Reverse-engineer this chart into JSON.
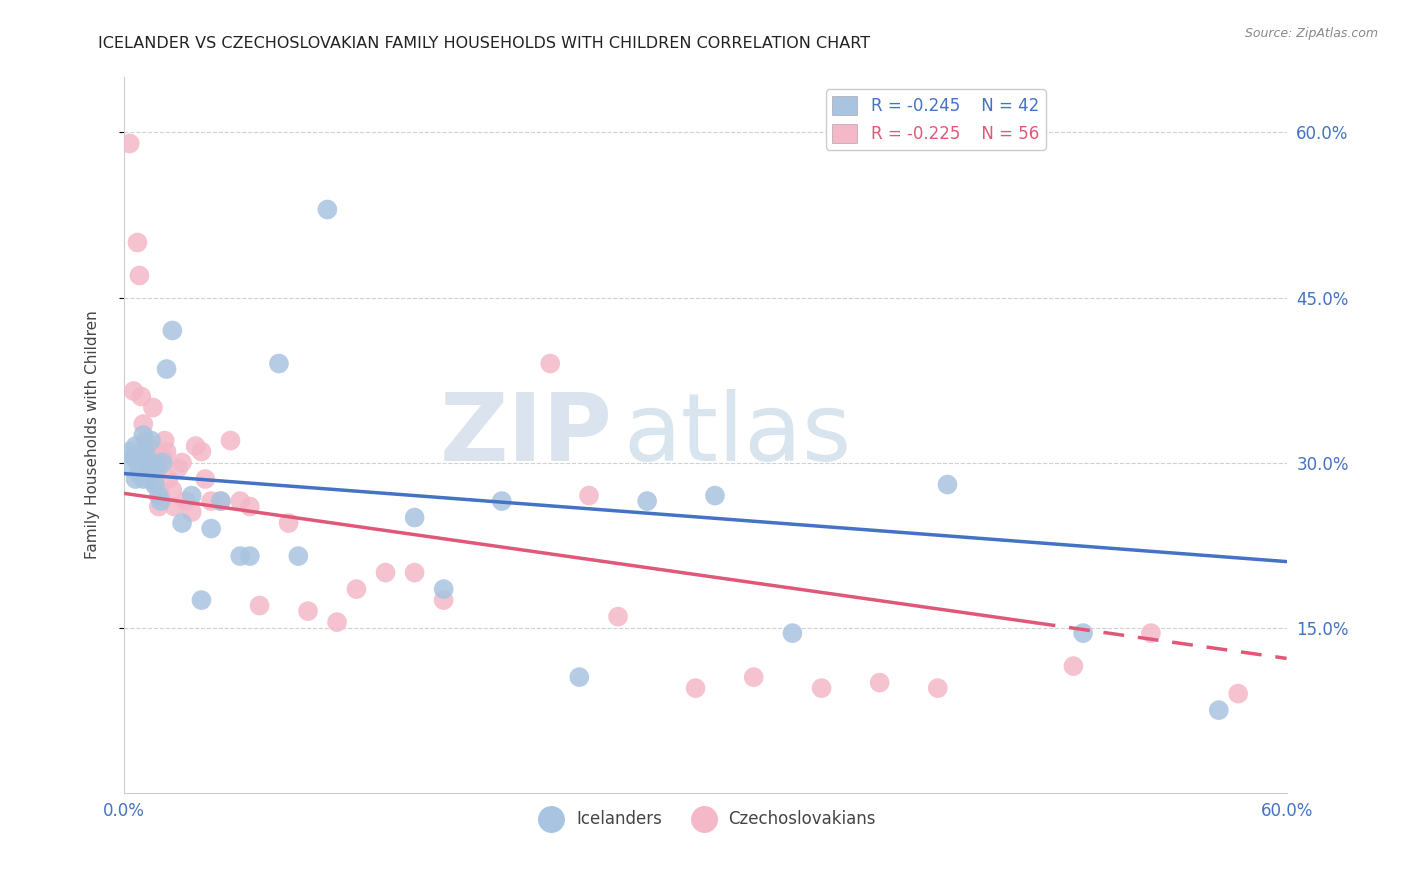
{
  "title": "ICELANDER VS CZECHOSLOVAKIAN FAMILY HOUSEHOLDS WITH CHILDREN CORRELATION CHART",
  "source": "Source: ZipAtlas.com",
  "ylabel": "Family Households with Children",
  "xlim": [
    0.0,
    0.6
  ],
  "ylim": [
    0.0,
    0.65
  ],
  "yticks": [
    0.15,
    0.3,
    0.45,
    0.6
  ],
  "ytick_labels": [
    "15.0%",
    "30.0%",
    "45.0%",
    "60.0%"
  ],
  "xtick_positions": [
    0.0,
    0.6
  ],
  "xtick_labels": [
    "0.0%",
    "60.0%"
  ],
  "icelanders_color": "#a8c4e0",
  "czechoslovakians_color": "#f4b8c8",
  "icelanders_line_color": "#4472c4",
  "czechoslovakians_line_color": "#e05878",
  "background_color": "#ffffff",
  "grid_color": "#d0d0d0",
  "blue_line_start": 0.29,
  "blue_line_end": 0.21,
  "pink_line_start": 0.272,
  "pink_line_end": 0.122,
  "icelanders_x": [
    0.003,
    0.004,
    0.005,
    0.006,
    0.006,
    0.007,
    0.008,
    0.009,
    0.01,
    0.01,
    0.011,
    0.012,
    0.013,
    0.014,
    0.015,
    0.016,
    0.017,
    0.018,
    0.019,
    0.02,
    0.022,
    0.025,
    0.03,
    0.035,
    0.04,
    0.045,
    0.05,
    0.06,
    0.065,
    0.08,
    0.09,
    0.105,
    0.15,
    0.165,
    0.195,
    0.235,
    0.27,
    0.305,
    0.345,
    0.425,
    0.495,
    0.565
  ],
  "icelanders_y": [
    0.31,
    0.295,
    0.305,
    0.285,
    0.315,
    0.3,
    0.29,
    0.305,
    0.325,
    0.285,
    0.31,
    0.295,
    0.285,
    0.32,
    0.3,
    0.28,
    0.295,
    0.27,
    0.265,
    0.3,
    0.385,
    0.42,
    0.245,
    0.27,
    0.175,
    0.24,
    0.265,
    0.215,
    0.215,
    0.39,
    0.215,
    0.53,
    0.25,
    0.185,
    0.265,
    0.105,
    0.265,
    0.27,
    0.145,
    0.28,
    0.145,
    0.075
  ],
  "czechoslovakians_x": [
    0.003,
    0.005,
    0.006,
    0.007,
    0.008,
    0.009,
    0.01,
    0.011,
    0.012,
    0.013,
    0.014,
    0.015,
    0.015,
    0.016,
    0.016,
    0.017,
    0.018,
    0.018,
    0.019,
    0.02,
    0.021,
    0.022,
    0.023,
    0.025,
    0.026,
    0.028,
    0.03,
    0.032,
    0.035,
    0.037,
    0.04,
    0.042,
    0.045,
    0.05,
    0.055,
    0.06,
    0.065,
    0.07,
    0.085,
    0.095,
    0.11,
    0.12,
    0.135,
    0.15,
    0.165,
    0.22,
    0.24,
    0.255,
    0.295,
    0.325,
    0.36,
    0.39,
    0.42,
    0.49,
    0.53,
    0.575
  ],
  "czechoslovakians_y": [
    0.59,
    0.365,
    0.305,
    0.5,
    0.47,
    0.36,
    0.335,
    0.32,
    0.315,
    0.295,
    0.305,
    0.31,
    0.35,
    0.295,
    0.28,
    0.305,
    0.295,
    0.26,
    0.27,
    0.305,
    0.32,
    0.31,
    0.285,
    0.275,
    0.26,
    0.295,
    0.3,
    0.265,
    0.255,
    0.315,
    0.31,
    0.285,
    0.265,
    0.265,
    0.32,
    0.265,
    0.26,
    0.17,
    0.245,
    0.165,
    0.155,
    0.185,
    0.2,
    0.2,
    0.175,
    0.39,
    0.27,
    0.16,
    0.095,
    0.105,
    0.095,
    0.1,
    0.095,
    0.115,
    0.145,
    0.09
  ]
}
